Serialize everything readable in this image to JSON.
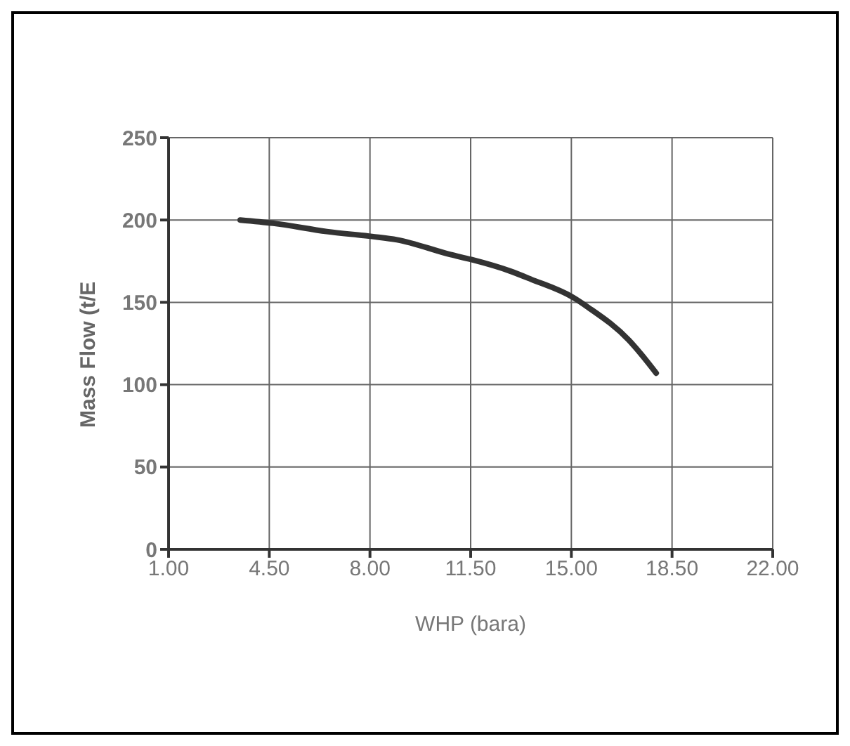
{
  "chart_data": {
    "type": "line",
    "xlabel": "WHP (bara)",
    "ylabel": "Mass Flow (t/E",
    "x": [
      3.49,
      4.64,
      6.5,
      8.07,
      8.94,
      10.8,
      11.52,
      12.87,
      13.6,
      15.06,
      15.58,
      17.0,
      17.45,
      17.95
    ],
    "series": [
      {
        "color": "#333333",
        "values": [
          200,
          198,
          193,
          190,
          188,
          179,
          176,
          169,
          164,
          153,
          147,
          127,
          118,
          107
        ]
      }
    ],
    "xlim": [
      1,
      22
    ],
    "xticks": [
      {
        "value": 1,
        "label": "1.00"
      },
      {
        "value": 4.5,
        "label": "4.50"
      },
      {
        "value": 8,
        "label": "8.00"
      },
      {
        "value": 11.5,
        "label": "11.50"
      },
      {
        "value": 15,
        "label": "15.00"
      },
      {
        "value": 18.5,
        "label": "18.50"
      },
      {
        "value": 22,
        "label": "22.00"
      }
    ],
    "ylim": [
      0,
      250
    ],
    "yticks": [
      0,
      50,
      100,
      150,
      200,
      250
    ],
    "grid": true,
    "marker": "none",
    "line_style": "solid"
  }
}
